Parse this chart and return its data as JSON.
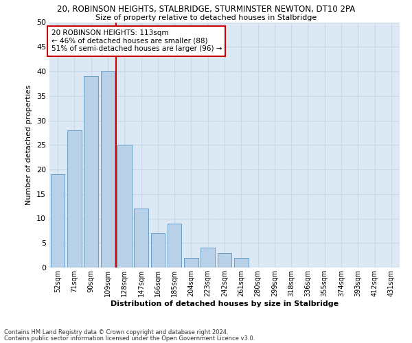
{
  "title": "20, ROBINSON HEIGHTS, STALBRIDGE, STURMINSTER NEWTON, DT10 2PA",
  "subtitle": "Size of property relative to detached houses in Stalbridge",
  "xlabel": "Distribution of detached houses by size in Stalbridge",
  "ylabel": "Number of detached properties",
  "categories": [
    "52sqm",
    "71sqm",
    "90sqm",
    "109sqm",
    "128sqm",
    "147sqm",
    "166sqm",
    "185sqm",
    "204sqm",
    "223sqm",
    "242sqm",
    "261sqm",
    "280sqm",
    "299sqm",
    "318sqm",
    "336sqm",
    "355sqm",
    "374sqm",
    "393sqm",
    "412sqm",
    "431sqm"
  ],
  "values": [
    19,
    28,
    39,
    40,
    25,
    12,
    7,
    9,
    2,
    4,
    3,
    2,
    0,
    0,
    0,
    0,
    0,
    0,
    0,
    0,
    0
  ],
  "bar_color": "#b8d0e8",
  "bar_edge_color": "#6a9fc8",
  "grid_color": "#c8d8e8",
  "background_color": "#dce8f4",
  "vline_color": "#cc0000",
  "annotation_text": "20 ROBINSON HEIGHTS: 113sqm\n← 46% of detached houses are smaller (88)\n51% of semi-detached houses are larger (96) →",
  "annotation_box_facecolor": "#ffffff",
  "annotation_box_edgecolor": "#cc0000",
  "ylim": [
    0,
    50
  ],
  "yticks": [
    0,
    5,
    10,
    15,
    20,
    25,
    30,
    35,
    40,
    45,
    50
  ],
  "footer1": "Contains HM Land Registry data © Crown copyright and database right 2024.",
  "footer2": "Contains public sector information licensed under the Open Government Licence v3.0."
}
